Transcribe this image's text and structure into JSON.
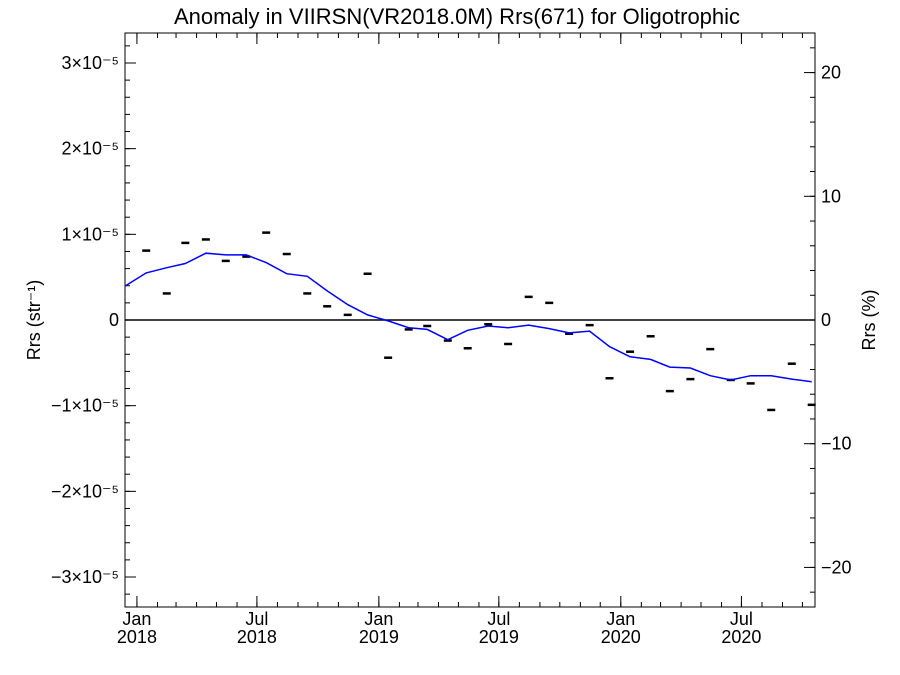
{
  "chart_data": {
    "type": "line",
    "title": "Anomaly in VIIRSN(VR2018.0M) Rrs(671) for Oligotrophic",
    "ylabel": "Rrs (str⁻¹)",
    "y2label": "Rrs (%)",
    "xlabel": "",
    "xlim": [
      "2017-12-14",
      "2020-10-20"
    ],
    "ylim": [
      -3.35e-05,
      3.35e-05
    ],
    "y2lim": [
      -23.2,
      23.2
    ],
    "yticks": [
      {
        "value": 3e-05,
        "label": "3×10⁻⁵"
      },
      {
        "value": 2e-05,
        "label": "2×10⁻⁵"
      },
      {
        "value": 1e-05,
        "label": "1×10⁻⁵"
      },
      {
        "value": 0,
        "label": "0"
      },
      {
        "value": -1e-05,
        "label": "−1×10⁻⁵"
      },
      {
        "value": -2e-05,
        "label": "−2×10⁻⁵"
      },
      {
        "value": -3e-05,
        "label": "−3×10⁻⁵"
      }
    ],
    "y2ticks": [
      {
        "value": 20,
        "label": "20"
      },
      {
        "value": 10,
        "label": "10"
      },
      {
        "value": 0,
        "label": "0"
      },
      {
        "value": -10,
        "label": "−10"
      },
      {
        "value": -20,
        "label": "−20"
      }
    ],
    "xticks": [
      {
        "date": "2018-01-01",
        "label1": "Jan",
        "label2": "2018"
      },
      {
        "date": "2018-07-01",
        "label1": "Jul",
        "label2": "2018"
      },
      {
        "date": "2019-01-01",
        "label1": "Jan",
        "label2": "2019"
      },
      {
        "date": "2019-07-01",
        "label1": "Jul",
        "label2": "2019"
      },
      {
        "date": "2020-01-01",
        "label1": "Jan",
        "label2": "2020"
      },
      {
        "date": "2020-07-01",
        "label1": "Jul",
        "label2": "2020"
      }
    ],
    "zero_line": true,
    "series": [
      {
        "kind": "points",
        "color": "#000000",
        "x": [
          "2018-01-15",
          "2018-02-15",
          "2018-03-15",
          "2018-04-15",
          "2018-05-15",
          "2018-06-15",
          "2018-07-15",
          "2018-08-15",
          "2018-09-15",
          "2018-10-15",
          "2018-11-15",
          "2018-12-15",
          "2019-01-15",
          "2019-02-15",
          "2019-03-15",
          "2019-04-15",
          "2019-05-15",
          "2019-06-15",
          "2019-07-15",
          "2019-08-15",
          "2019-09-15",
          "2019-10-15",
          "2019-11-15",
          "2019-12-15",
          "2020-01-15",
          "2020-02-15",
          "2020-03-15",
          "2020-04-15",
          "2020-05-15",
          "2020-06-15",
          "2020-07-15",
          "2020-08-15",
          "2020-09-15",
          "2020-10-15"
        ],
        "values": [
          8.1e-06,
          3.1e-06,
          9e-06,
          9.4e-06,
          6.9e-06,
          7.4e-06,
          1.02e-05,
          7.7e-06,
          3.1e-06,
          1.6e-06,
          6e-07,
          5.4e-06,
          -4.4e-06,
          -1.1e-06,
          -7e-07,
          -2.4e-06,
          -3.3e-06,
          -5e-07,
          -2.8e-06,
          2.7e-06,
          2e-06,
          -1.6e-06,
          -6e-07,
          -6.8e-06,
          -3.7e-06,
          -1.9e-06,
          -8.3e-06,
          -6.9e-06,
          -3.4e-06,
          -7e-06,
          -7.4e-06,
          -1.05e-05,
          -5.1e-06,
          -9.9e-06
        ]
      },
      {
        "kind": "line",
        "color": "#0000ff",
        "x": [
          "2017-12-15",
          "2018-01-15",
          "2018-02-15",
          "2018-03-15",
          "2018-04-15",
          "2018-05-15",
          "2018-06-15",
          "2018-07-15",
          "2018-08-15",
          "2018-09-15",
          "2018-10-15",
          "2018-11-15",
          "2018-12-15",
          "2019-01-15",
          "2019-02-15",
          "2019-03-15",
          "2019-04-15",
          "2019-05-15",
          "2019-06-15",
          "2019-07-15",
          "2019-08-15",
          "2019-09-15",
          "2019-10-15",
          "2019-11-15",
          "2019-12-15",
          "2020-01-15",
          "2020-02-15",
          "2020-03-15",
          "2020-04-15",
          "2020-05-15",
          "2020-06-15",
          "2020-07-15",
          "2020-08-15",
          "2020-09-15",
          "2020-10-15"
        ],
        "values": [
          4e-06,
          5.5e-06,
          6.1e-06,
          6.6e-06,
          7.8e-06,
          7.6e-06,
          7.6e-06,
          6.7e-06,
          5.4e-06,
          5.1e-06,
          3.4e-06,
          1.8e-06,
          6e-07,
          -1e-07,
          -9e-07,
          -1.1e-06,
          -2.3e-06,
          -1.2e-06,
          -7e-07,
          -9e-07,
          -6e-07,
          -1e-06,
          -1.5e-06,
          -1.3e-06,
          -3.1e-06,
          -4.3e-06,
          -4.6e-06,
          -5.5e-06,
          -5.6e-06,
          -6.5e-06,
          -7e-06,
          -6.5e-06,
          -6.5e-06,
          -6.9e-06,
          -7.2e-06
        ]
      }
    ]
  }
}
